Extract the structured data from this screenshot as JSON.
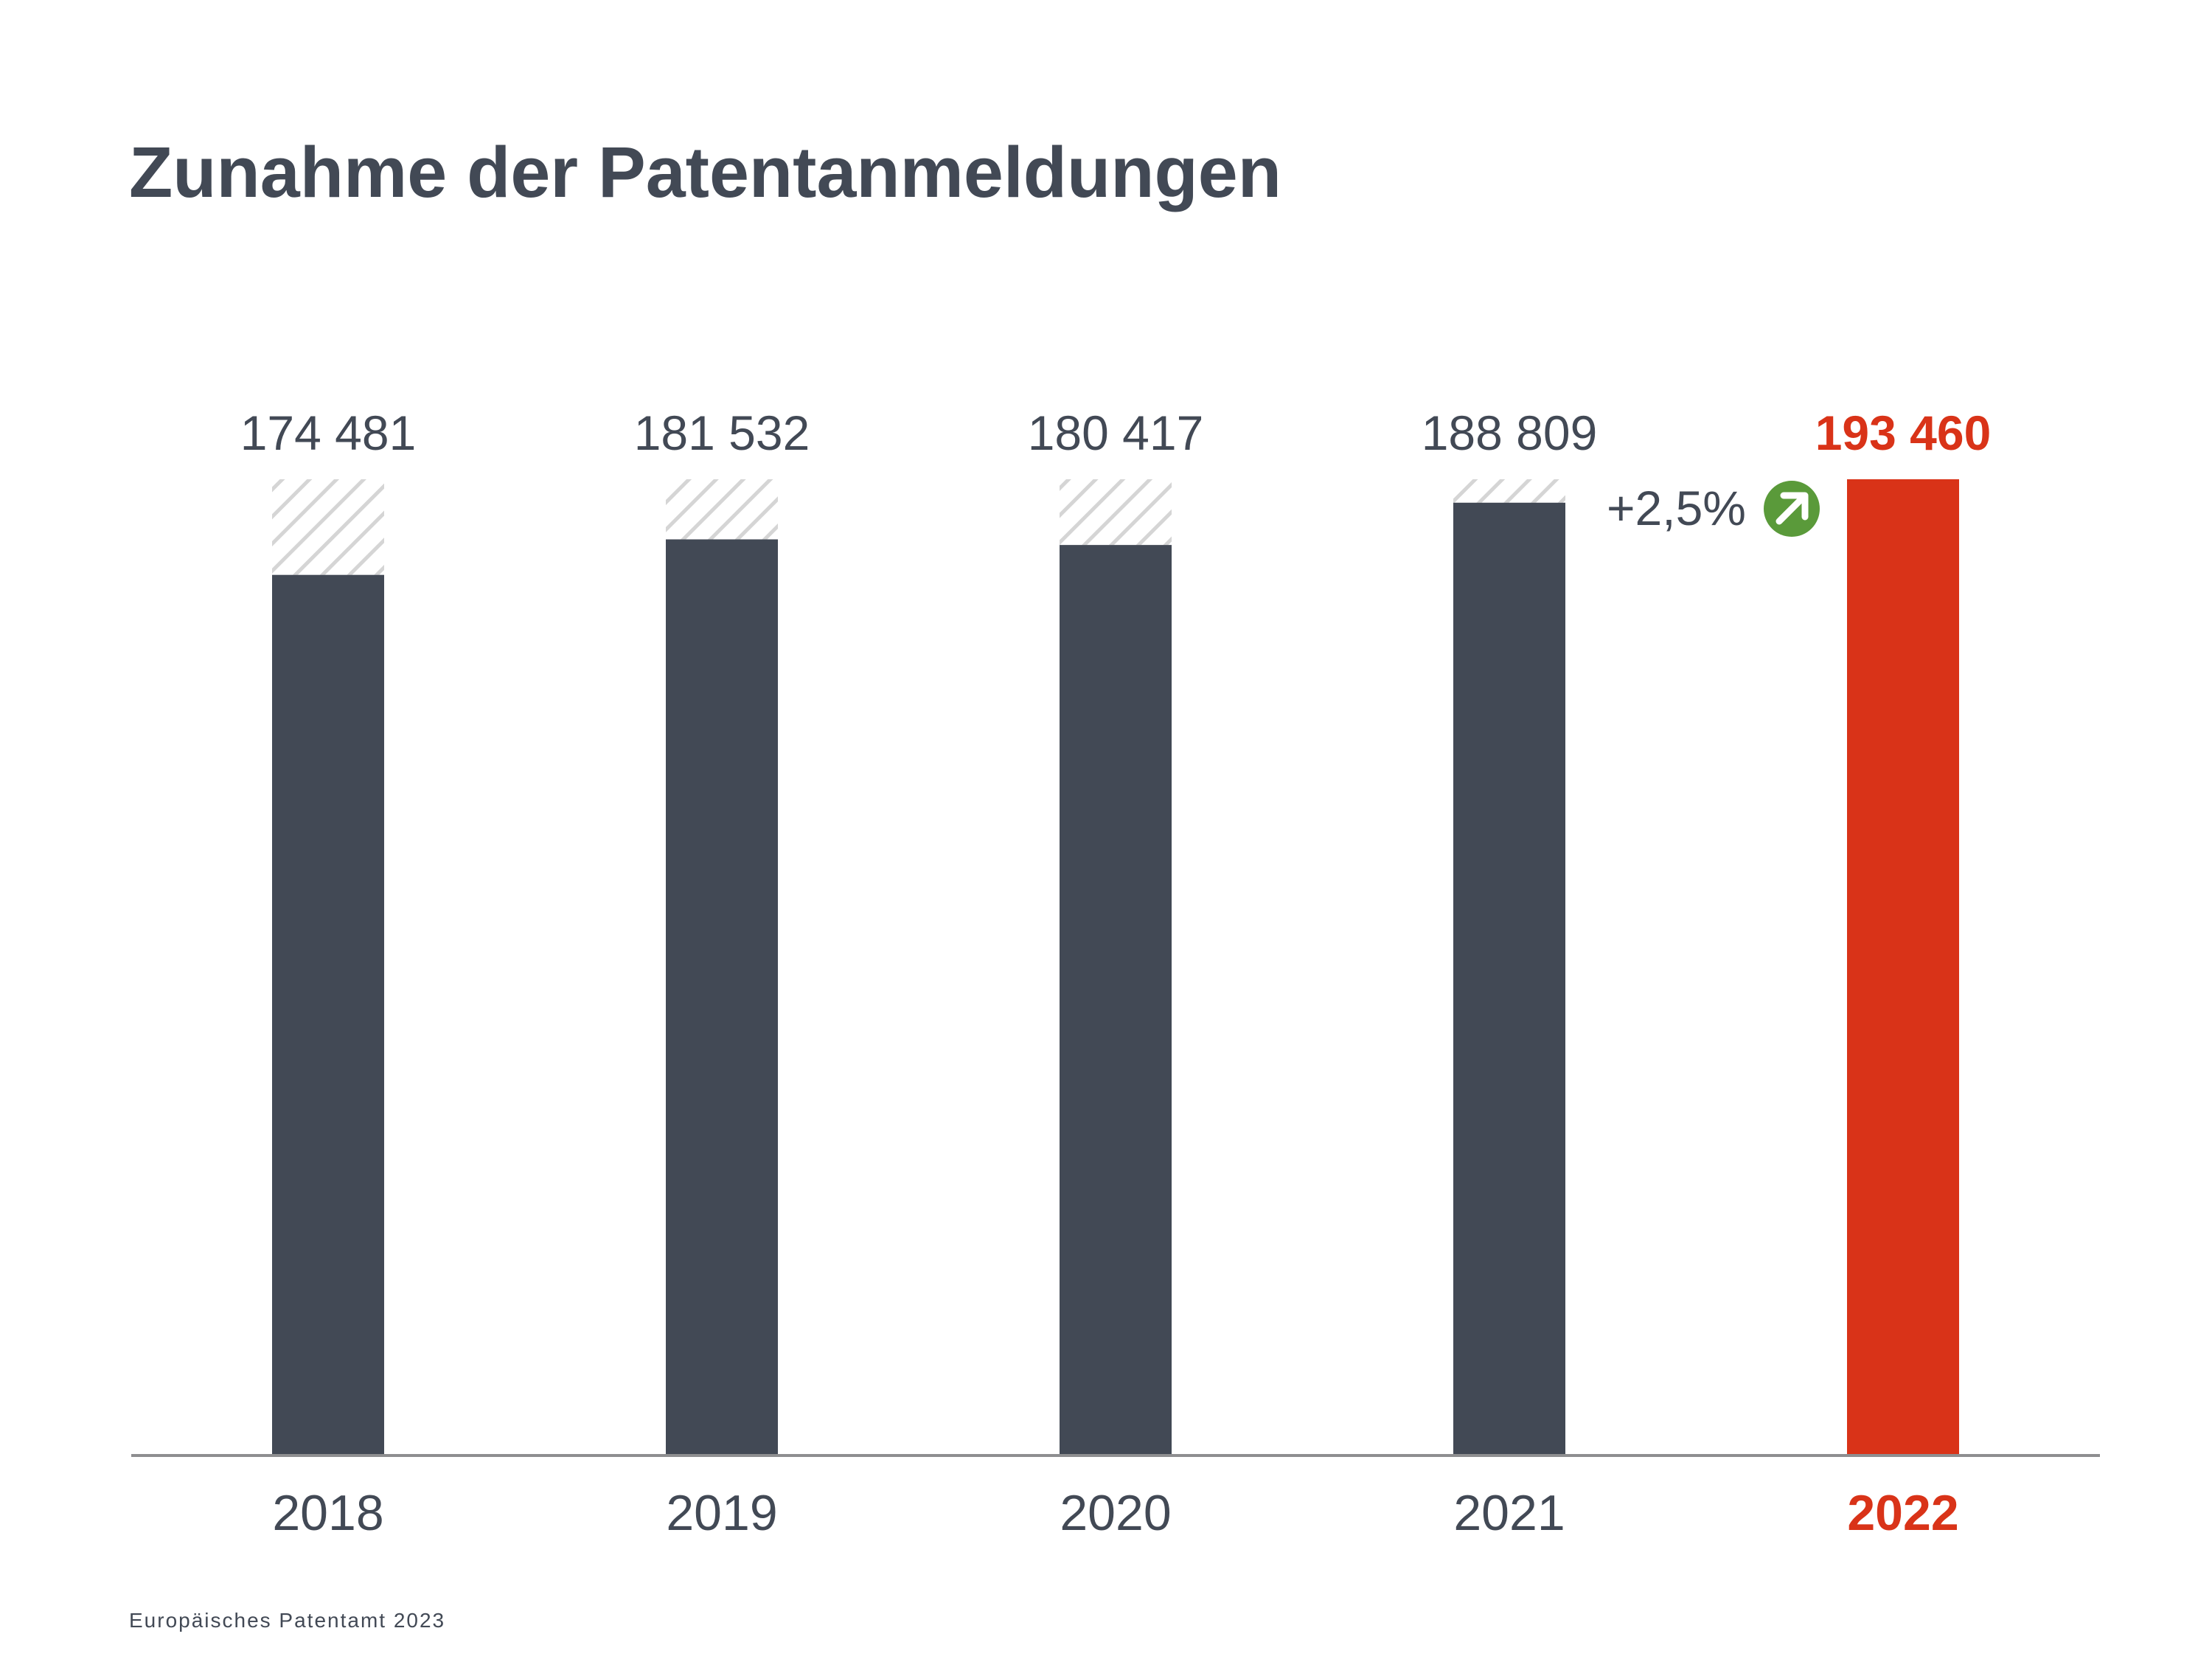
{
  "chart_data": {
    "type": "bar",
    "title": "Zunahme der Patentanmeldungen",
    "categories": [
      "2018",
      "2019",
      "2020",
      "2021",
      "2022"
    ],
    "values": [
      174481,
      181532,
      180417,
      188809,
      193460
    ],
    "value_labels": [
      "174 481",
      "181 532",
      "180 417",
      "188 809",
      "193 460"
    ],
    "highlight_index": 4,
    "annotation": {
      "text": "+2,5%",
      "icon": "up-right-arrow-icon",
      "between": [
        "2021",
        "2022"
      ]
    },
    "reference_value": 193460,
    "reference_style": "hatched",
    "ylim": [
      0,
      193460
    ],
    "grid": false,
    "legend": "none",
    "colors": {
      "bar": "#424955",
      "highlight": "#d93318",
      "text": "#424955",
      "hatch": "#d5d5d5",
      "axis": "#8e8e90",
      "arrow_badge": "#5a9a3a"
    }
  },
  "source": "Europäisches Patentamt 2023"
}
